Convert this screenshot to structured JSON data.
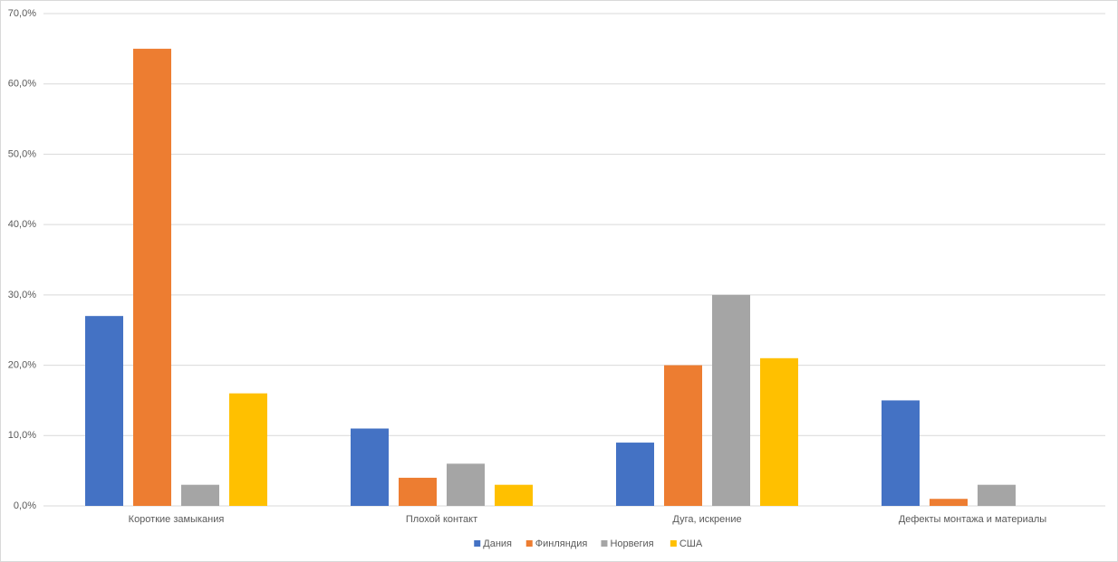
{
  "chart_data": {
    "type": "bar",
    "categories": [
      "Короткие замыкания",
      "Плохой контакт",
      "Дуга, искрение",
      "Дефекты монтажа и материалы"
    ],
    "series": [
      {
        "name": "Дания",
        "color": "#4472c4",
        "values": [
          27,
          11,
          9,
          15
        ]
      },
      {
        "name": "Финляндия",
        "color": "#ed7d31",
        "values": [
          65,
          4,
          20,
          1
        ]
      },
      {
        "name": "Норвегия",
        "color": "#a5a5a5",
        "values": [
          3,
          6,
          30,
          3
        ]
      },
      {
        "name": "США",
        "color": "#ffc000",
        "values": [
          16,
          3,
          21,
          null
        ]
      }
    ],
    "ylim": [
      0,
      70
    ],
    "yticks": [
      {
        "value": 0,
        "label": "0,0%"
      },
      {
        "value": 10,
        "label": "10,0%"
      },
      {
        "value": 20,
        "label": "20,0%"
      },
      {
        "value": 30,
        "label": "30,0%"
      },
      {
        "value": 40,
        "label": "40,0%"
      },
      {
        "value": 50,
        "label": "50,0%"
      },
      {
        "value": 60,
        "label": "60,0%"
      },
      {
        "value": 70,
        "label": "70,0%"
      }
    ],
    "grid": true,
    "legend": "bottom"
  }
}
